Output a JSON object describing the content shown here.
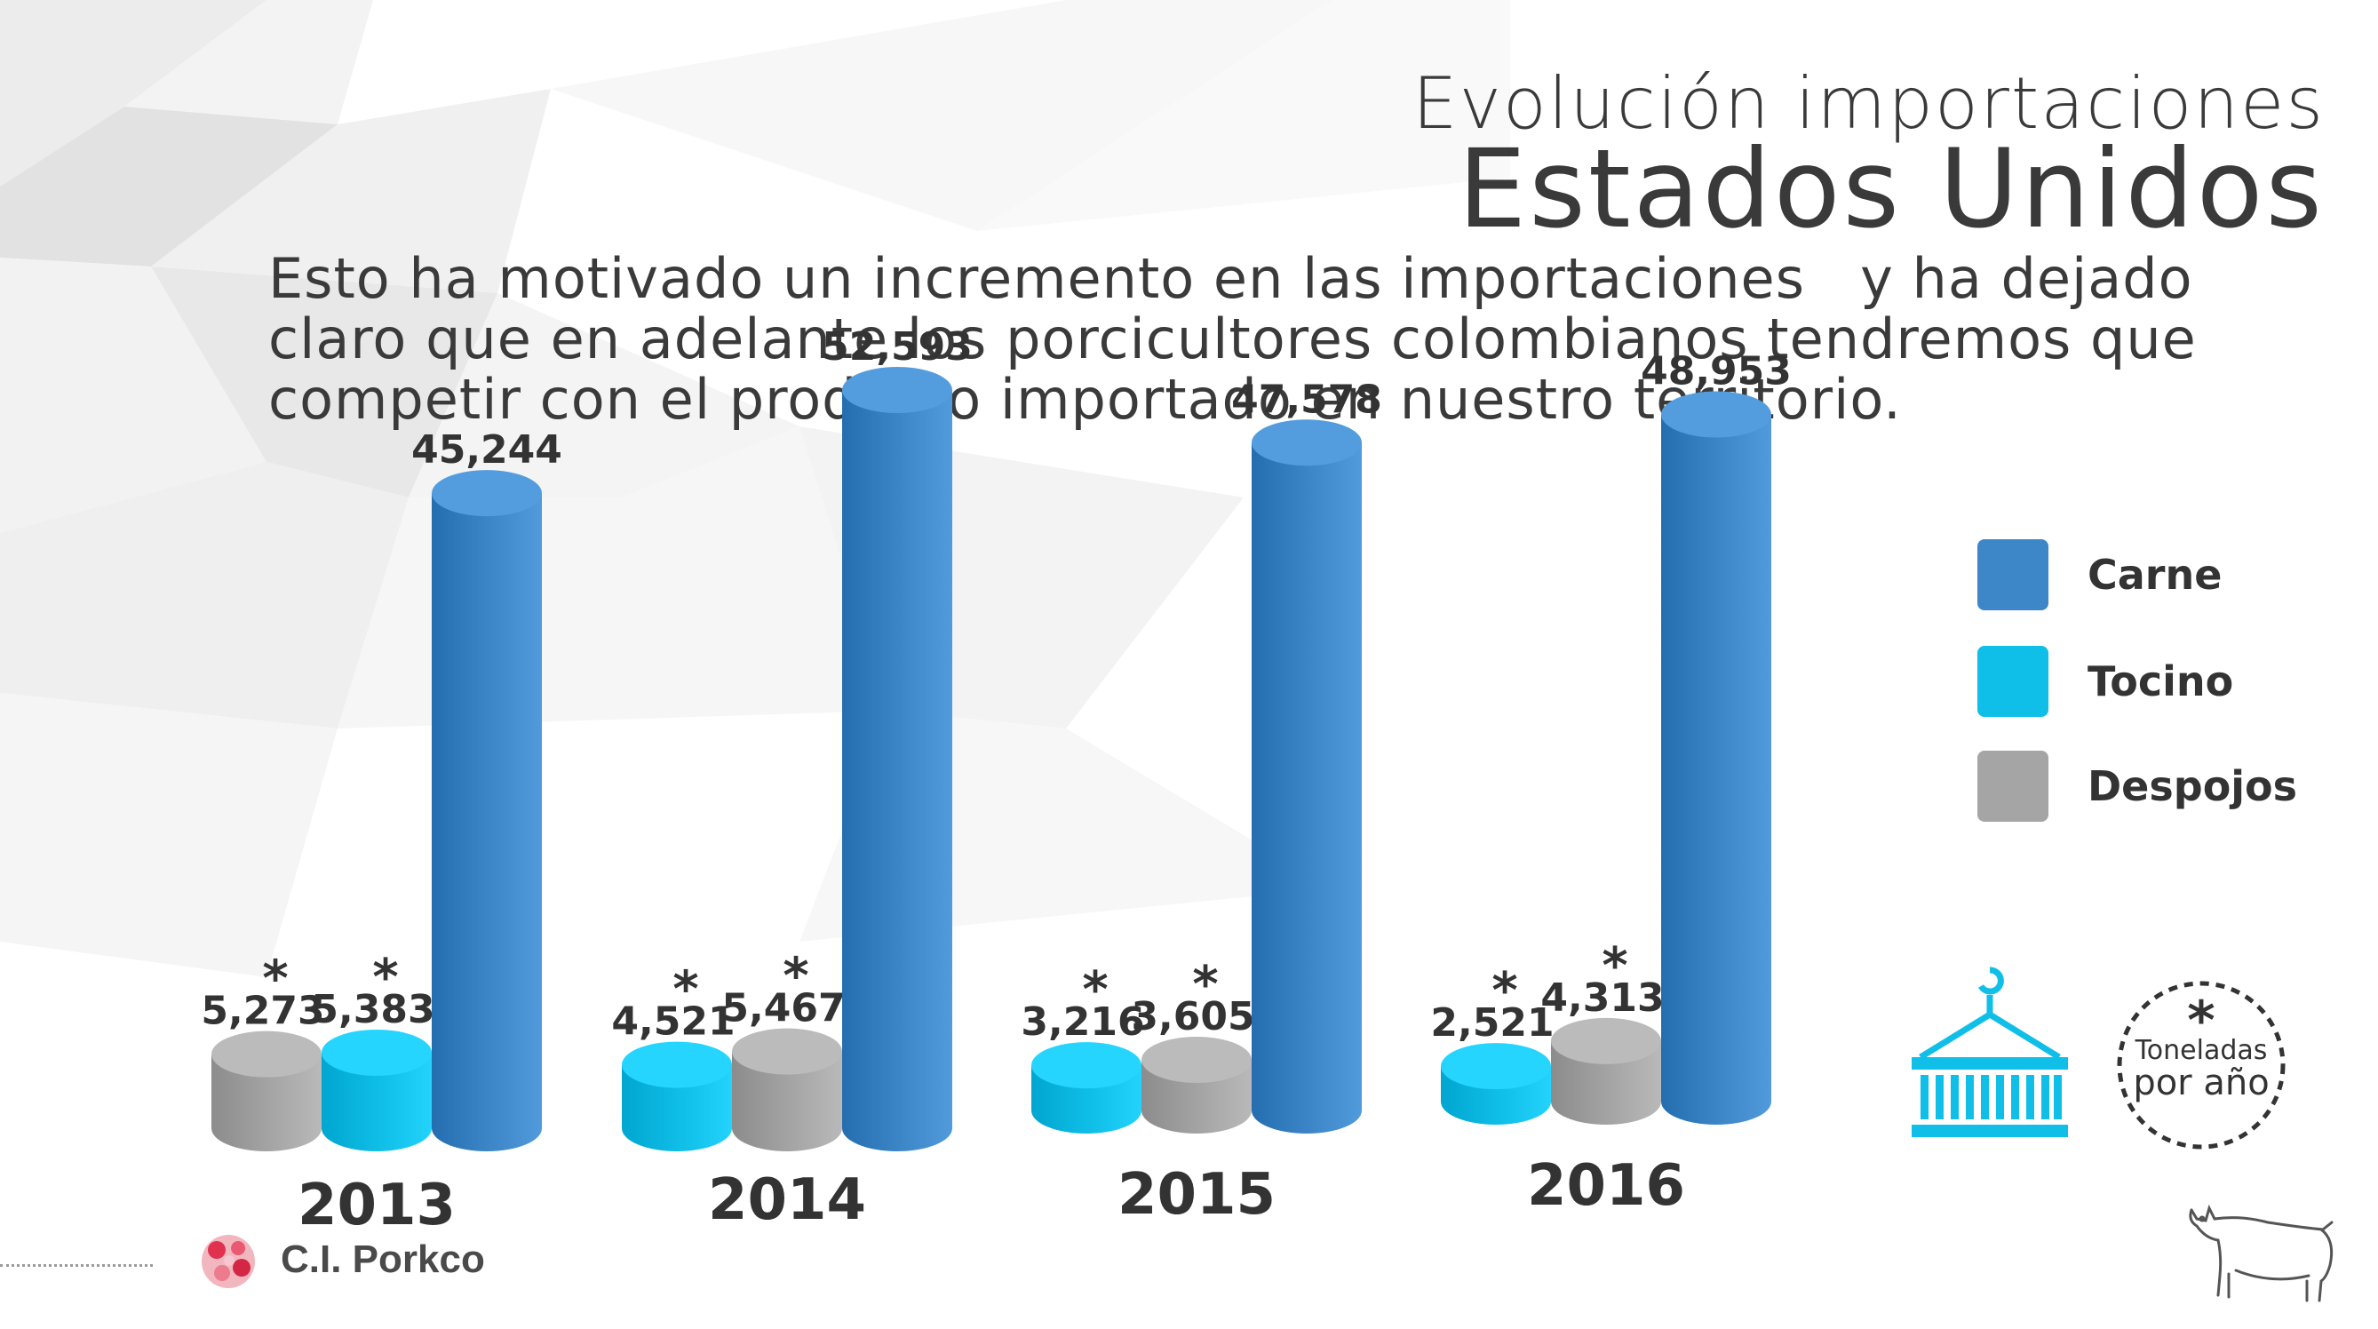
{
  "title": {
    "line1": "Evolución importaciones",
    "line2": "Estados Unidos"
  },
  "body": {
    "line1": "Esto ha motivado un incremento en las importaciones   y ha dejado",
    "line2": "claro que en adelante los porcicultores colombianos tendremos que",
    "line3": "competir con el producto importado en nuestro territorio."
  },
  "chart_data": {
    "type": "bar",
    "title": "",
    "xlabel": "",
    "ylabel": "",
    "categories": [
      "2013",
      "2014",
      "2015",
      "2016"
    ],
    "series": [
      {
        "name": "Carne",
        "color": "#3d87c8",
        "values": [
          45244,
          52593,
          47578,
          48953
        ]
      },
      {
        "name": "Tocino",
        "color": "#10bfe8",
        "values": [
          5383,
          4521,
          3216,
          2521
        ]
      },
      {
        "name": "Despojos",
        "color": "#a5a5a5",
        "values": [
          5273,
          5467,
          3605,
          4313
        ]
      }
    ],
    "bar_order": [
      [
        "Despojos",
        "Tocino",
        "Carne"
      ],
      [
        "Tocino",
        "Despojos",
        "Carne"
      ],
      [
        "Tocino",
        "Despojos",
        "Carne"
      ],
      [
        "Tocino",
        "Despojos",
        "Carne"
      ]
    ],
    "value_labels": {
      "2013": {
        "Despojos": "5,273",
        "Tocino": "5,383",
        "Carne": "45,244"
      },
      "2014": {
        "Tocino": "4,521",
        "Despojos": "5,467",
        "Carne": "52,593"
      },
      "2015": {
        "Tocino": "3,216",
        "Despojos": "3,605",
        "Carne": "47,578"
      },
      "2016": {
        "Tocino": "2,521",
        "Despojos": "4,313",
        "Carne": "48,953"
      }
    },
    "asterisk_marked": [
      "Tocino",
      "Despojos"
    ],
    "legend": {
      "placement": "right",
      "entries": [
        {
          "label": "Carne",
          "color": "#3d87c8"
        },
        {
          "label": "Tocino",
          "color": "#10bfe8"
        },
        {
          "label": "Despojos",
          "color": "#a5a5a5"
        }
      ]
    },
    "style": "3d-cylinders",
    "grid": false
  },
  "note": {
    "symbol": "*",
    "line1": "Toneladas",
    "line2": "por año"
  },
  "brand": {
    "name": "C.I. Porkco"
  },
  "icons": {
    "container": "shipping-container-icon",
    "pig": "pig-illustration",
    "logo": "porkco-logo-icon"
  },
  "colors": {
    "text": "#3a3a3a",
    "accent_cyan": "#10bfe8"
  }
}
